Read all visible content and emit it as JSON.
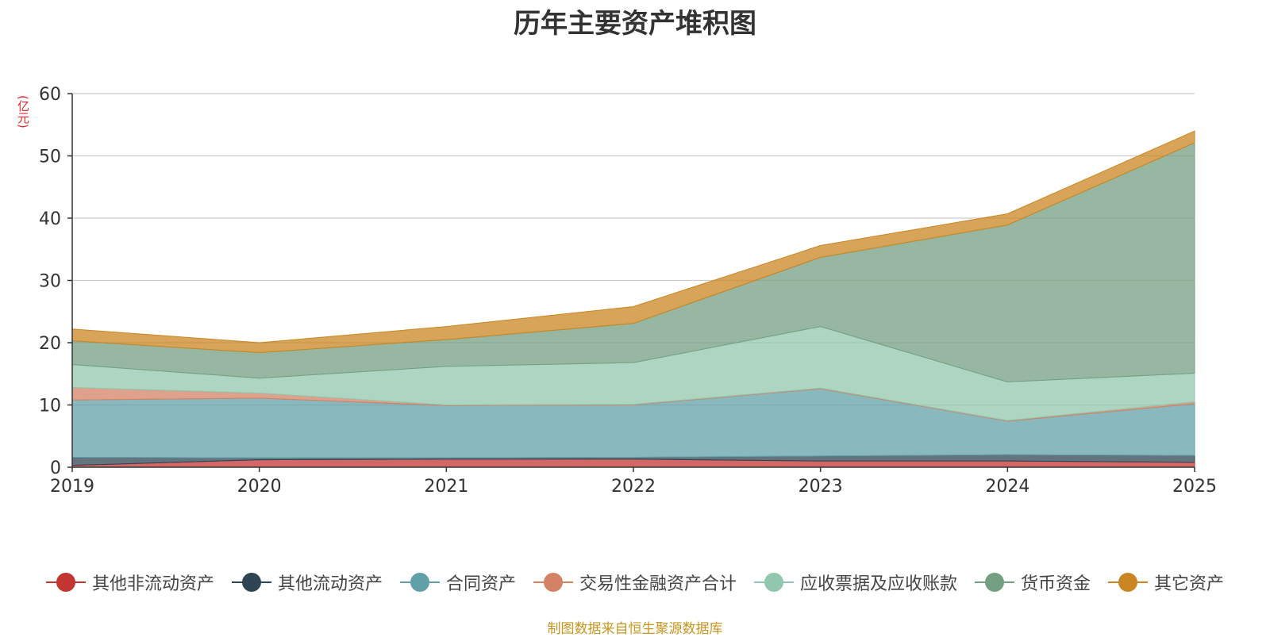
{
  "chart_data": {
    "type": "area",
    "stacked": true,
    "title": "历年主要资产堆积图",
    "ylabel": "(亿元)",
    "xlabel": "",
    "x": [
      "2019",
      "2020",
      "2021",
      "2022",
      "2023",
      "2024",
      "2025"
    ],
    "ylim": [
      0,
      60
    ],
    "yticks": [
      0,
      10,
      20,
      30,
      40,
      50,
      60
    ],
    "grid": true,
    "legend_position": "bottom",
    "series": [
      {
        "name": "其他非流动资产",
        "color": "#c23531",
        "values": [
          0.3,
          1.2,
          1.3,
          1.3,
          1.0,
          1.0,
          0.8
        ]
      },
      {
        "name": "其他流动资产",
        "color": "#2f4554",
        "values": [
          1.3,
          0.3,
          0.2,
          0.3,
          0.8,
          1.0,
          1.1
        ]
      },
      {
        "name": "合同资产",
        "color": "#61a0a8",
        "values": [
          9.2,
          9.6,
          8.4,
          8.4,
          10.8,
          5.4,
          8.3
        ]
      },
      {
        "name": "交易性金融资产合计",
        "color": "#d48265",
        "values": [
          2.0,
          0.8,
          0.1,
          0.1,
          0.1,
          0.1,
          0.3
        ]
      },
      {
        "name": "应收票据及应收账款",
        "color": "#91c7ae",
        "values": [
          3.7,
          2.4,
          6.2,
          6.7,
          9.9,
          6.2,
          4.6
        ]
      },
      {
        "name": "货币资金",
        "color": "#749f83",
        "values": [
          3.8,
          4.1,
          4.3,
          6.3,
          11.1,
          25.2,
          37.0
        ]
      },
      {
        "name": "其它资产",
        "color": "#ca8622",
        "values": [
          1.9,
          1.6,
          2.1,
          2.7,
          1.9,
          1.8,
          1.9
        ]
      }
    ]
  },
  "footer": {
    "source": "制图数据来自恒生聚源数据库"
  }
}
